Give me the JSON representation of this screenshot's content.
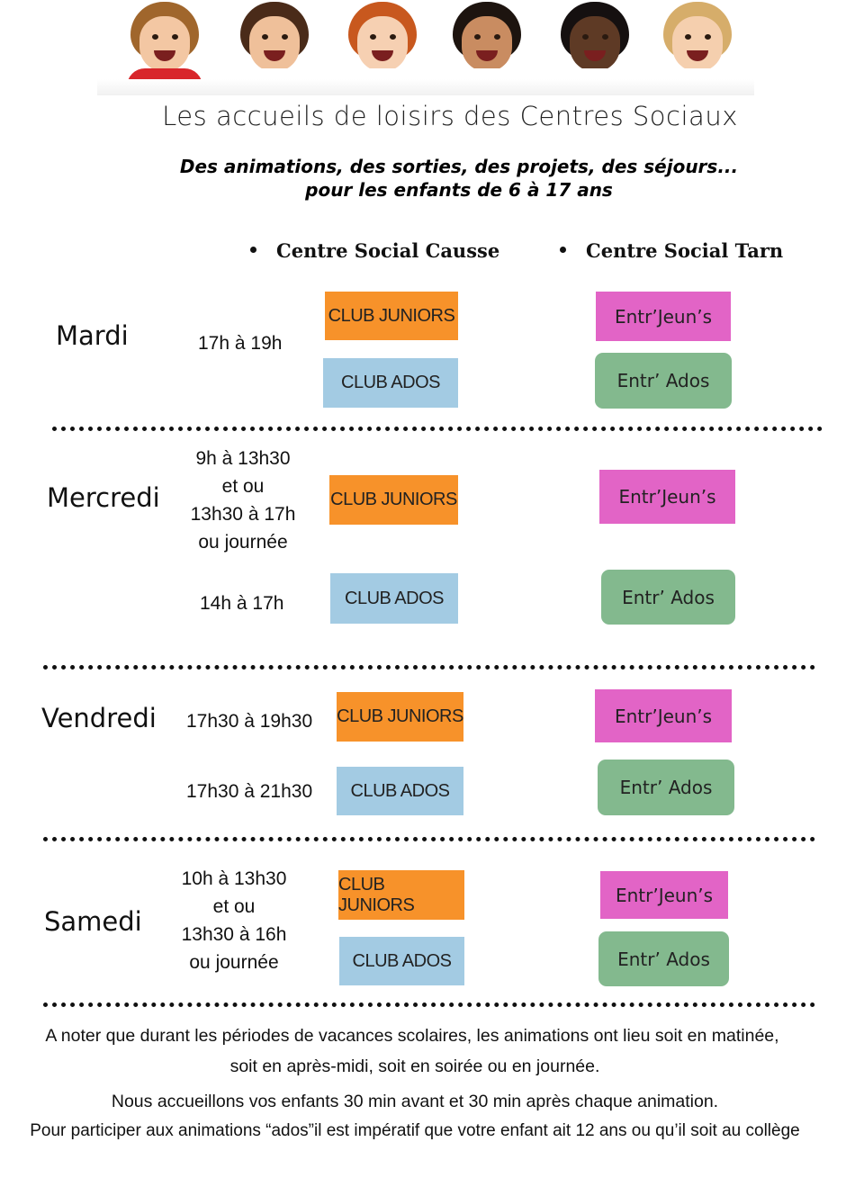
{
  "header": {
    "title": "Les accueils de loisirs des Centres Sociaux",
    "subtitle_line1": "Des animations, des sorties, des projets, des séjours...",
    "subtitle_line2": "pour les enfants de 6 à 17 ans"
  },
  "columns": {
    "causse": "Centre Social Causse",
    "tarn": "Centre Social Tarn"
  },
  "labels": {
    "club_juniors": "CLUB JUNIORS",
    "club_ados": "CLUB ADOS",
    "entr_jeuns": "Entr’Jeun’s",
    "entr_ados": "Entr’ Ados"
  },
  "schedule": {
    "mardi": {
      "day": "Mardi",
      "time": "17h à 19h"
    },
    "mercredi": {
      "day": "Mercredi",
      "time_line1": "9h à 13h30",
      "time_line2": "et ou",
      "time_line3": "13h30 à 17h",
      "time_line4": "ou journée",
      "time_ados": "14h à 17h"
    },
    "vendredi": {
      "day": "Vendredi",
      "time_juniors": "17h30 à 19h30",
      "time_ados": "17h30 à 21h30"
    },
    "samedi": {
      "day": "Samedi",
      "time_line1": "10h à 13h30",
      "time_line2": "et ou",
      "time_line3": "13h30 à 16h",
      "time_line4": "ou journée"
    }
  },
  "notes": {
    "line1": "A noter que durant les périodes de vacances scolaires, les animations ont lieu soit en matinée,",
    "line2": "soit en après-midi, soit en soirée ou en journée.",
    "line3": "Nous accueillons vos enfants 30 min avant et 30 min après chaque animation.",
    "line4": "Pour participer aux animations “ados”il est impératif que votre enfant ait 12 ans ou qu’il soit au collège"
  },
  "colors": {
    "club_juniors": "#f7922a",
    "club_ados": "#a3cbe3",
    "entr_jeuns": "#e264c6",
    "entr_ados": "#83b98e"
  }
}
